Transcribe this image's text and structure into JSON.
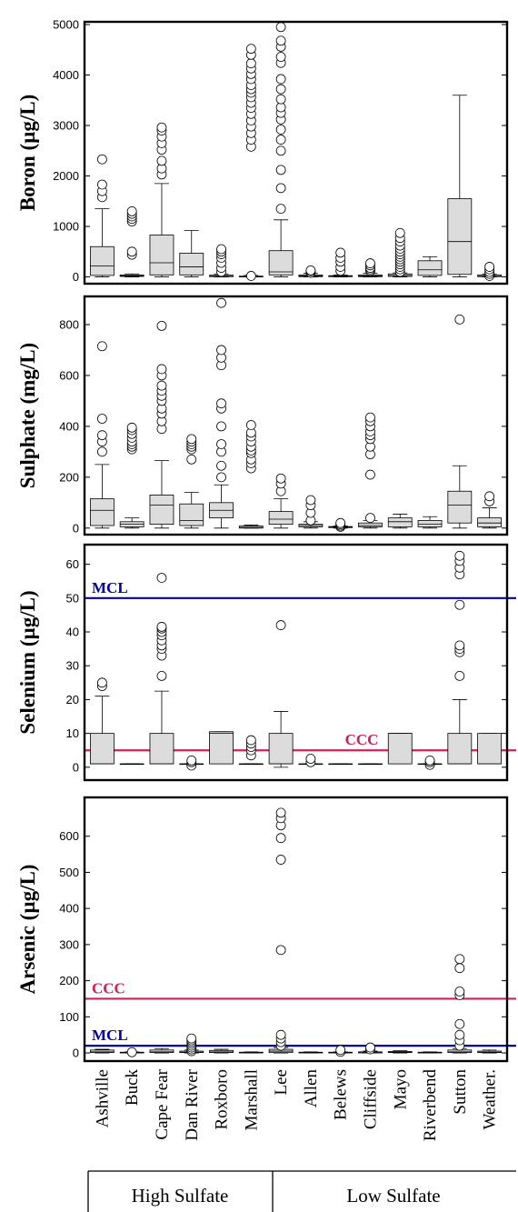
{
  "chart_data": {
    "type": "box",
    "categories": [
      "Ashville",
      "Buck",
      "Cape Fear",
      "Dan River",
      "Roxboro",
      "Marshall",
      "Lee",
      "Allen",
      "Belews",
      "Cliffside",
      "Mayo",
      "Riverbend",
      "Sutton",
      "Weather."
    ],
    "groups": [
      {
        "label": "High Sulfate",
        "categories": [
          "Ashville",
          "Buck",
          "Cape Fear",
          "Dan River",
          "Roxboro",
          "Marshall",
          "Lee"
        ]
      },
      {
        "label": "Low Sulfate",
        "categories": [
          "Allen",
          "Belews",
          "Cliffside",
          "Mayo",
          "Riverbend",
          "Sutton",
          "Weather."
        ]
      }
    ],
    "colors": {
      "box": "#dcdcdc",
      "mcl": "#0000aa",
      "ccc": "#cc2255"
    },
    "panels": [
      {
        "ylabel": "Boron (µg/L)",
        "ylim": [
          -80,
          5000
        ],
        "yticks": [
          0,
          1000,
          2000,
          3000,
          4000,
          5000
        ],
        "reference_lines": [],
        "boxes": [
          {
            "q1": 30,
            "median": 220,
            "q3": 600,
            "wlo": 0,
            "whi": 1350,
            "outliers": [
              1580,
              1700,
              1830,
              2330
            ]
          },
          {
            "q1": 10,
            "median": 20,
            "q3": 40,
            "wlo": 0,
            "whi": 60,
            "outliers": [
              440,
              500,
              1100,
              1150,
              1200,
              1250,
              1300
            ]
          },
          {
            "q1": 40,
            "median": 280,
            "q3": 830,
            "wlo": 0,
            "whi": 1850,
            "outliers": [
              2030,
              2150,
              2300,
              2520,
              2650,
              2780,
              2900,
              2960
            ]
          },
          {
            "q1": 40,
            "median": 200,
            "q3": 470,
            "wlo": 0,
            "whi": 920,
            "outliers": []
          },
          {
            "q1": 5,
            "median": 15,
            "q3": 35,
            "wlo": 0,
            "whi": 60,
            "outliers": [
              100,
              180,
              280,
              380,
              450,
              500,
              550
            ]
          },
          {
            "q1": 0,
            "median": 5,
            "q3": 15,
            "wlo": 0,
            "whi": 30,
            "outliers": [
              20,
              2580,
              2720,
              2850,
              2980,
              3100,
              3230,
              3350,
              3450,
              3560,
              3650,
              3720,
              3800,
              3920,
              4020,
              4130,
              4230,
              4400,
              4520
            ]
          },
          {
            "q1": 40,
            "median": 100,
            "q3": 520,
            "wlo": 0,
            "whi": 1130,
            "outliers": [
              1350,
              1760,
              2120,
              2500,
              2720,
              2920,
              3120,
              3250,
              3360,
              3520,
              3720,
              3920,
              4240,
              4360,
              4560,
              4680,
              4950
            ]
          },
          {
            "q1": 5,
            "median": 20,
            "q3": 40,
            "wlo": 0,
            "whi": 70,
            "outliers": [
              80,
              110,
              130
            ]
          },
          {
            "q1": 5,
            "median": 10,
            "q3": 25,
            "wlo": 0,
            "whi": 40,
            "outliers": [
              120,
              200,
              300,
              380,
              480
            ]
          },
          {
            "q1": 5,
            "median": 20,
            "q3": 40,
            "wlo": 0,
            "whi": 70,
            "outliers": [
              120,
              150,
              180,
              230,
              270
            ]
          },
          {
            "q1": 10,
            "median": 30,
            "q3": 60,
            "wlo": 0,
            "whi": 80,
            "outliers": [
              100,
              150,
              200,
              250,
              300,
              350,
              400,
              450,
              500,
              560,
              620,
              700,
              770,
              870
            ]
          },
          {
            "q1": 30,
            "median": 140,
            "q3": 320,
            "wlo": 0,
            "whi": 400,
            "outliers": []
          },
          {
            "q1": 50,
            "median": 700,
            "q3": 1550,
            "wlo": 0,
            "whi": 3600,
            "outliers": []
          },
          {
            "q1": 5,
            "median": 15,
            "q3": 40,
            "wlo": 0,
            "whi": 60,
            "outliers": [
              20,
              60,
              100,
              150,
              200
            ]
          }
        ]
      },
      {
        "ylabel": "Sulphate (mg/L)",
        "ylim": [
          -15,
          900
        ],
        "yticks": [
          0,
          200,
          400,
          600,
          800
        ],
        "reference_lines": [],
        "boxes": [
          {
            "q1": 10,
            "median": 70,
            "q3": 115,
            "wlo": 0,
            "whi": 250,
            "outliers": [
              300,
              340,
              365,
              430,
              715
            ]
          },
          {
            "q1": 5,
            "median": 15,
            "q3": 25,
            "wlo": 0,
            "whi": 40,
            "outliers": [
              310,
              320,
              330,
              340,
              355,
              370,
              385,
              395
            ]
          },
          {
            "q1": 15,
            "median": 90,
            "q3": 130,
            "wlo": 0,
            "whi": 265,
            "outliers": [
              390,
              420,
              450,
              470,
              500,
              520,
              540,
              560,
              600,
              625,
              795
            ]
          },
          {
            "q1": 10,
            "median": 30,
            "q3": 95,
            "wlo": 0,
            "whi": 140,
            "outliers": [
              270,
              310,
              320,
              330,
              340,
              350
            ]
          },
          {
            "q1": 40,
            "median": 70,
            "q3": 100,
            "wlo": 0,
            "whi": 170,
            "outliers": [
              200,
              245,
              300,
              330,
              400,
              470,
              490,
              640,
              670,
              700,
              885
            ]
          },
          {
            "q1": 0,
            "median": 3,
            "q3": 8,
            "wlo": 0,
            "whi": 12,
            "outliers": [
              235,
              255,
              270,
              295,
              305,
              320,
              340,
              360,
              375,
              405
            ]
          },
          {
            "q1": 15,
            "median": 35,
            "q3": 65,
            "wlo": 0,
            "whi": 115,
            "outliers": [
              145,
              175,
              195
            ]
          },
          {
            "q1": 5,
            "median": 10,
            "q3": 15,
            "wlo": 0,
            "whi": 25,
            "outliers": [
              30,
              60,
              90,
              110
            ]
          },
          {
            "q1": 2,
            "median": 4,
            "q3": 6,
            "wlo": 0,
            "whi": 8,
            "outliers": [
              5,
              10,
              15,
              20
            ]
          },
          {
            "q1": 5,
            "median": 10,
            "q3": 20,
            "wlo": 0,
            "whi": 30,
            "outliers": [
              40,
              210,
              290,
              320,
              350,
              365,
              380,
              400,
              420,
              435
            ]
          },
          {
            "q1": 5,
            "median": 25,
            "q3": 40,
            "wlo": 0,
            "whi": 55,
            "outliers": []
          },
          {
            "q1": 5,
            "median": 15,
            "q3": 30,
            "wlo": 0,
            "whi": 45,
            "outliers": []
          },
          {
            "q1": 20,
            "median": 90,
            "q3": 145,
            "wlo": 0,
            "whi": 245,
            "outliers": [
              820
            ]
          },
          {
            "q1": 5,
            "median": 20,
            "q3": 40,
            "wlo": 0,
            "whi": 80,
            "outliers": [
              105,
              125
            ]
          }
        ]
      },
      {
        "ylabel": "Selenium (µg/L)",
        "ylim": [
          -3,
          65
        ],
        "yticks": [
          0,
          10,
          20,
          30,
          40,
          50,
          60
        ],
        "reference_lines": [
          {
            "label": "MCL",
            "value": 50,
            "color": "#0000aa"
          },
          {
            "label": "CCC",
            "value": 5,
            "color": "#cc2255"
          }
        ],
        "boxes": [
          {
            "q1": 1,
            "median": 1,
            "q3": 10,
            "wlo": 1,
            "whi": 21,
            "outliers": [
              24,
              25
            ]
          },
          {
            "q1": 1,
            "median": 1,
            "q3": 1,
            "wlo": 1,
            "whi": 1,
            "outliers": []
          },
          {
            "q1": 1,
            "median": 1,
            "q3": 10,
            "wlo": 1,
            "whi": 22.5,
            "outliers": [
              27,
              33,
              35,
              36,
              37.5,
              39,
              40,
              41,
              41.5,
              56
            ]
          },
          {
            "q1": 1,
            "median": 1,
            "q3": 1,
            "wlo": 1,
            "whi": 1,
            "outliers": [
              0.5,
              1.5,
              2
            ]
          },
          {
            "q1": 1,
            "median": 10,
            "q3": 10.5,
            "wlo": 1,
            "whi": 10.5,
            "outliers": []
          },
          {
            "q1": 1,
            "median": 1,
            "q3": 1,
            "wlo": 1,
            "whi": 1,
            "outliers": [
              3.5,
              5,
              6,
              7,
              8
            ]
          },
          {
            "q1": 1,
            "median": 1,
            "q3": 10,
            "wlo": 0,
            "whi": 16.5,
            "outliers": [
              42
            ]
          },
          {
            "q1": 1,
            "median": 1,
            "q3": 1,
            "wlo": 1,
            "whi": 1,
            "outliers": [
              1.5,
              2.5
            ]
          },
          {
            "q1": 1,
            "median": 1,
            "q3": 1,
            "wlo": 1,
            "whi": 1,
            "outliers": []
          },
          {
            "q1": 1,
            "median": 1,
            "q3": 1,
            "wlo": 1,
            "whi": 1,
            "outliers": []
          },
          {
            "q1": 1,
            "median": 10,
            "q3": 10,
            "wlo": 1,
            "whi": 10,
            "outliers": []
          },
          {
            "q1": 1,
            "median": 1,
            "q3": 1,
            "wlo": 1,
            "whi": 1,
            "outliers": [
              0.7,
              1.5,
              2
            ]
          },
          {
            "q1": 1,
            "median": 1,
            "q3": 10,
            "wlo": 1,
            "whi": 20,
            "outliers": [
              27,
              34,
              35,
              36,
              48,
              57,
              59,
              61,
              62.5
            ]
          },
          {
            "q1": 1,
            "median": 1,
            "q3": 10,
            "wlo": 1,
            "whi": 10,
            "outliers": []
          }
        ]
      },
      {
        "ylabel": "Arsenic (µg/L)",
        "ylim": [
          -15,
          700
        ],
        "yticks": [
          0,
          100,
          200,
          300,
          400,
          500,
          600
        ],
        "reference_lines": [
          {
            "label": "CCC",
            "value": 150,
            "color": "#cc2255"
          },
          {
            "label": "MCL",
            "value": 20,
            "color": "#0000aa"
          }
        ],
        "boxes": [
          {
            "q1": 1,
            "median": 3,
            "q3": 8,
            "wlo": 0,
            "whi": 10,
            "outliers": []
          },
          {
            "q1": 0,
            "median": 1,
            "q3": 2,
            "wlo": 0,
            "whi": 3,
            "outliers": [
              2
            ]
          },
          {
            "q1": 1,
            "median": 3,
            "q3": 8,
            "wlo": 0,
            "whi": 12,
            "outliers": []
          },
          {
            "q1": 1,
            "median": 2,
            "q3": 5,
            "wlo": 0,
            "whi": 8,
            "outliers": [
              5,
              10,
              15,
              20,
              25,
              30,
              35,
              40
            ]
          },
          {
            "q1": 1,
            "median": 3,
            "q3": 7,
            "wlo": 0,
            "whi": 10,
            "outliers": []
          },
          {
            "q1": 0,
            "median": 1,
            "q3": 2,
            "wlo": 0,
            "whi": 3,
            "outliers": []
          },
          {
            "q1": 1,
            "median": 5,
            "q3": 10,
            "wlo": 0,
            "whi": 15,
            "outliers": [
              20,
              30,
              40,
              50,
              285,
              535,
              595,
              630,
              650,
              665
            ]
          },
          {
            "q1": 0,
            "median": 1,
            "q3": 2,
            "wlo": 0,
            "whi": 3,
            "outliers": []
          },
          {
            "q1": 0,
            "median": 1,
            "q3": 2,
            "wlo": 0,
            "whi": 3,
            "outliers": [
              3,
              8
            ]
          },
          {
            "q1": 0,
            "median": 1,
            "q3": 3,
            "wlo": 0,
            "whi": 5,
            "outliers": [
              10,
              15
            ]
          },
          {
            "q1": 1,
            "median": 2,
            "q3": 4,
            "wlo": 0,
            "whi": 6,
            "outliers": []
          },
          {
            "q1": 0,
            "median": 1,
            "q3": 2,
            "wlo": 0,
            "whi": 3,
            "outliers": []
          },
          {
            "q1": 1,
            "median": 3,
            "q3": 8,
            "wlo": 0,
            "whi": 12,
            "outliers": [
              20,
              35,
              50,
              80,
              160,
              170,
              235,
              260
            ]
          },
          {
            "q1": 1,
            "median": 2,
            "q3": 5,
            "wlo": 0,
            "whi": 8,
            "outliers": []
          }
        ]
      }
    ]
  }
}
